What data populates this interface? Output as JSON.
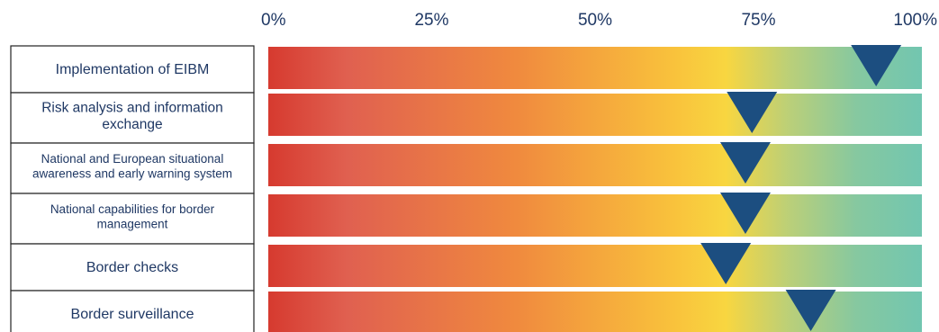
{
  "chart_data": {
    "type": "bar",
    "x_ticks": [
      "0%",
      "25%",
      "50%",
      "75%",
      "100%"
    ],
    "xlim": [
      0,
      100
    ],
    "grid": false,
    "legend": "none",
    "categories": [
      "Implementation of EIBM",
      "Risk analysis and information exchange",
      "National and European situational awareness and early warning system",
      "National capabilities for border management",
      "Border checks",
      "Border surveillance"
    ],
    "category_lines": [
      [
        "Implementation of EIBM"
      ],
      [
        "Risk analysis and information",
        "exchange"
      ],
      [
        "National and European situational",
        "awareness and early warning system"
      ],
      [
        "National capabilities for border",
        "management"
      ],
      [
        "Border checks"
      ],
      [
        "Border surveillance"
      ]
    ],
    "values": [
      93,
      74,
      73,
      73,
      70,
      83
    ],
    "gradient_stops": [
      {
        "offset": 0,
        "color": "#d63a2f"
      },
      {
        "offset": 12,
        "color": "#e06050"
      },
      {
        "offset": 38,
        "color": "#f08a3e"
      },
      {
        "offset": 62,
        "color": "#f9c23c"
      },
      {
        "offset": 70,
        "color": "#f8d640"
      },
      {
        "offset": 80,
        "color": "#b9cf7a"
      },
      {
        "offset": 90,
        "color": "#86c8a0"
      },
      {
        "offset": 100,
        "color": "#72c6b0"
      }
    ],
    "marker_color": "#1c4e80"
  }
}
